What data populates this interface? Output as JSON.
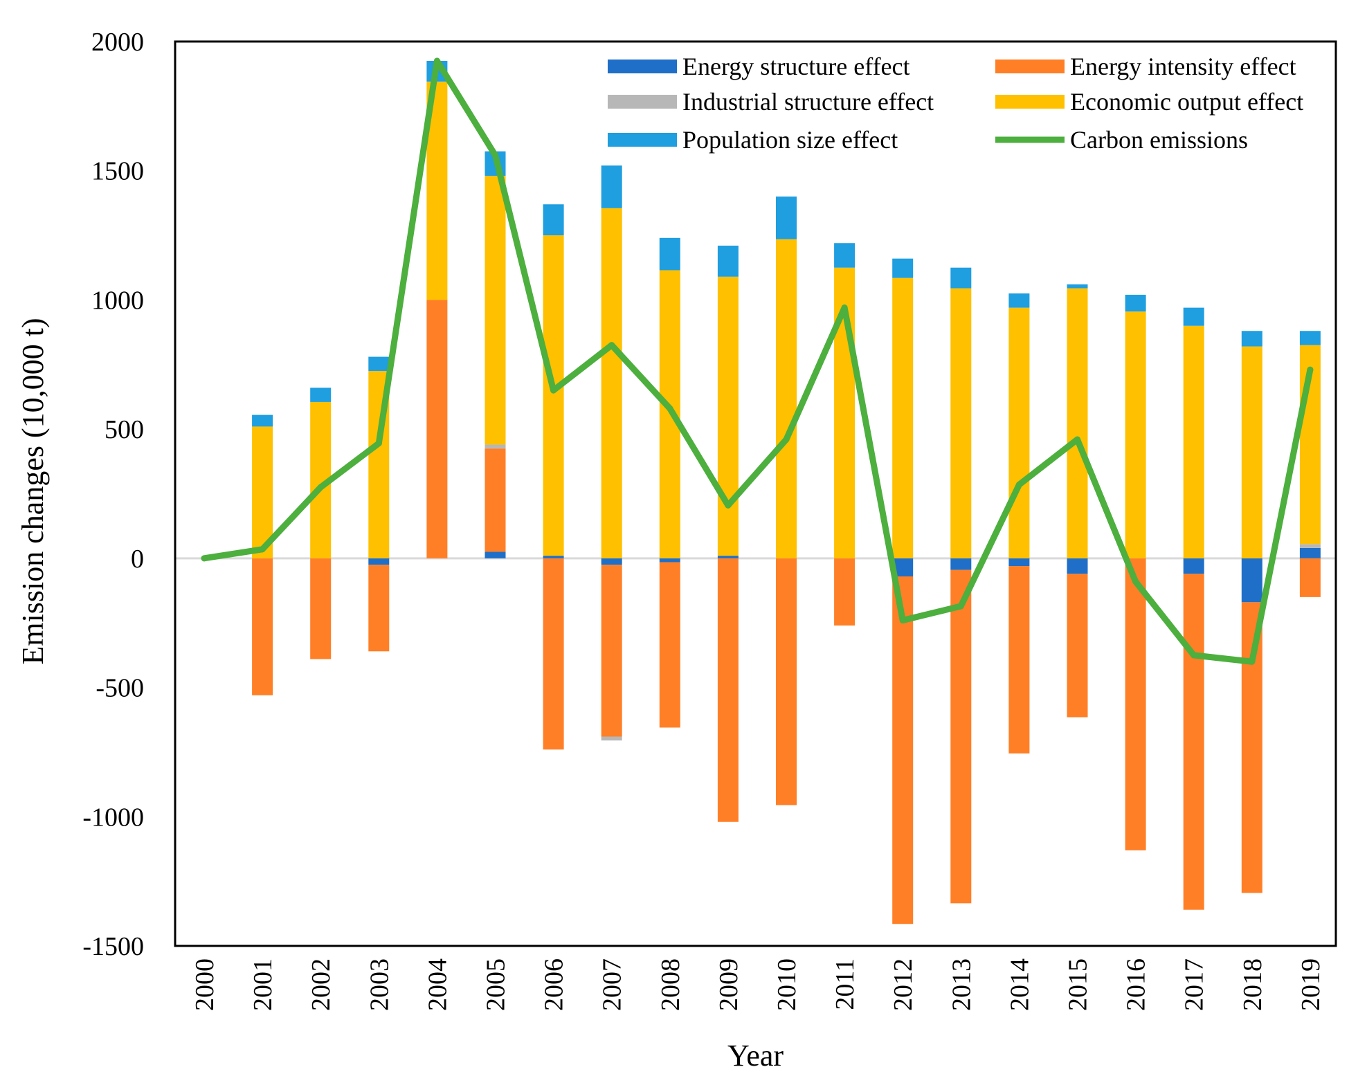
{
  "chart_data": {
    "type": "bar",
    "stacked": true,
    "title": "",
    "xlabel": "Year",
    "ylabel": "Emission changes (10,000 t)",
    "ylim": [
      -1500,
      2000
    ],
    "yticks": [
      2000,
      1500,
      1000,
      500,
      0,
      -500,
      -1000,
      -1500
    ],
    "ytick_labels": [
      "2000",
      "1500",
      "1000",
      "500",
      "0",
      "-500",
      "-1000",
      "-1500"
    ],
    "grid": false,
    "legend_position": "top-right",
    "categories": [
      "2000",
      "2001",
      "2002",
      "2003",
      "2004",
      "2005",
      "2006",
      "2007",
      "2008",
      "2009",
      "2010",
      "2011",
      "2012",
      "2013",
      "2014",
      "2015",
      "2016",
      "2017",
      "2018",
      "2019"
    ],
    "series": [
      {
        "name": "Energy structure effect",
        "kind": "bar",
        "color": "#1f6fc8",
        "values": [
          0,
          0,
          0,
          -25,
          0,
          25,
          10,
          -25,
          -15,
          10,
          0,
          0,
          -70,
          -45,
          -30,
          -60,
          0,
          -60,
          -170,
          40
        ]
      },
      {
        "name": "Energy intensity effect",
        "kind": "bar",
        "color": "#ff7f27",
        "values": [
          0,
          -530,
          -390,
          -335,
          1000,
          400,
          -740,
          -665,
          -640,
          -1020,
          -955,
          -260,
          -1345,
          -1290,
          -725,
          -555,
          -1130,
          -1300,
          -1125,
          -150
        ]
      },
      {
        "name": "Industrial structure effect",
        "kind": "bar",
        "color": "#b7b7b7",
        "values": [
          0,
          0,
          0,
          0,
          0,
          15,
          0,
          -15,
          0,
          0,
          0,
          0,
          0,
          0,
          0,
          0,
          0,
          0,
          0,
          15
        ]
      },
      {
        "name": "Economic output effect",
        "kind": "bar",
        "color": "#ffc000",
        "values": [
          0,
          510,
          605,
          725,
          845,
          1040,
          1240,
          1355,
          1115,
          1080,
          1235,
          1125,
          1085,
          1045,
          970,
          1045,
          955,
          900,
          820,
          770
        ]
      },
      {
        "name": "Population size effect",
        "kind": "bar",
        "color": "#1f9ee0",
        "values": [
          0,
          45,
          55,
          55,
          80,
          95,
          120,
          165,
          125,
          120,
          165,
          95,
          75,
          80,
          55,
          15,
          65,
          70,
          60,
          55
        ]
      },
      {
        "name": "Carbon emissions",
        "kind": "line",
        "color": "#4caf3e",
        "values": [
          0,
          35,
          275,
          445,
          1925,
          1560,
          650,
          825,
          580,
          205,
          460,
          970,
          -240,
          -185,
          285,
          460,
          -90,
          -375,
          -400,
          730
        ]
      }
    ]
  }
}
